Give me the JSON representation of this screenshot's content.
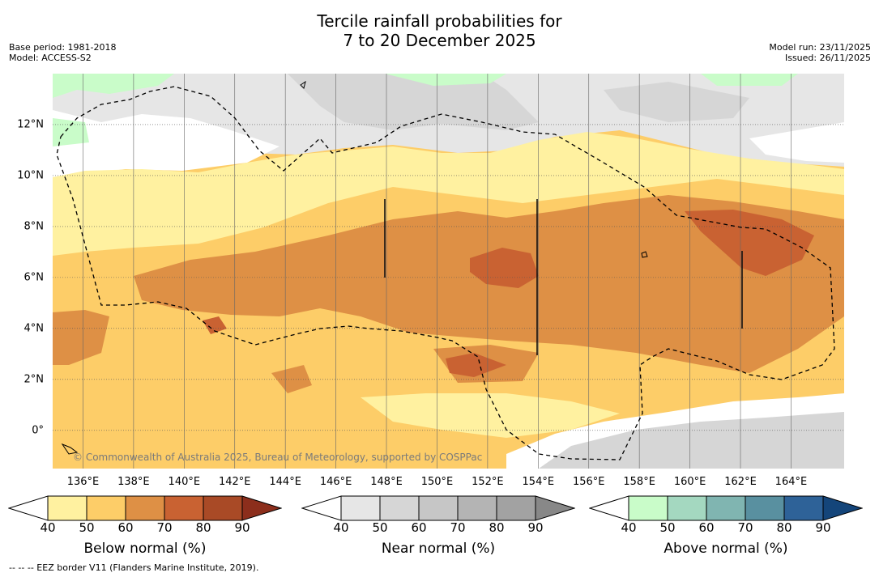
{
  "header": {
    "title_line1": "Tercile rainfall probabilities for",
    "title_line2": "7 to 20 December 2025",
    "base_period": "Base period: 1981-2018",
    "model": "Model: ACCESS-S2",
    "model_run": "Model run: 23/11/2025",
    "issued": "Issued: 26/11/2025"
  },
  "map": {
    "lon_range": [
      134.8,
      166.1
    ],
    "lat_range": [
      -1.5,
      14
    ],
    "lat_labels": [
      {
        "lat": 12,
        "label": "12°N"
      },
      {
        "lat": 10,
        "label": "10°N"
      },
      {
        "lat": 8,
        "label": "8°N"
      },
      {
        "lat": 6,
        "label": "6°N"
      },
      {
        "lat": 4,
        "label": "4°N"
      },
      {
        "lat": 2,
        "label": "2°N"
      },
      {
        "lat": 0,
        "label": "0°"
      }
    ],
    "lon_labels": [
      {
        "lon": 136,
        "label": "136°E"
      },
      {
        "lon": 138,
        "label": "138°E"
      },
      {
        "lon": 140,
        "label": "140°E"
      },
      {
        "lon": 142,
        "label": "142°E"
      },
      {
        "lon": 144,
        "label": "144°E"
      },
      {
        "lon": 146,
        "label": "146°E"
      },
      {
        "lon": 148,
        "label": "148°E"
      },
      {
        "lon": 150,
        "label": "150°E"
      },
      {
        "lon": 152,
        "label": "152°E"
      },
      {
        "lon": 154,
        "label": "154°E"
      },
      {
        "lon": 156,
        "label": "156°E"
      },
      {
        "lon": 158,
        "label": "158°E"
      },
      {
        "lon": 160,
        "label": "160°E"
      },
      {
        "lon": 162,
        "label": "162°E"
      },
      {
        "lon": 164,
        "label": "164°E"
      }
    ],
    "copyright": "© Commonwealth of Australia 2025, Bureau of Meteorology, supported by COSPPac"
  },
  "colorbars": [
    {
      "title": "Below normal (%)",
      "colors": [
        "#fff1a0",
        "#fdcd68",
        "#de9045",
        "#c96232",
        "#a94a26",
        "#8c2e1c"
      ]
    },
    {
      "title": "Near normal (%)",
      "colors": [
        "#e6e6e6",
        "#d6d6d6",
        "#c6c6c6",
        "#b4b4b4",
        "#a2a2a2",
        "#888888"
      ]
    },
    {
      "title": "Above normal (%)",
      "colors": [
        "#c9fcc9",
        "#a4d8c0",
        "#80b5b1",
        "#5990a0",
        "#2e6298",
        "#14457a"
      ]
    }
  ],
  "colorbar_ticks": [
    "40",
    "50",
    "60",
    "70",
    "80",
    "90"
  ],
  "legend_note": "--  --  -- EEZ border V11 (Flanders Marine Institute, 2019)."
}
